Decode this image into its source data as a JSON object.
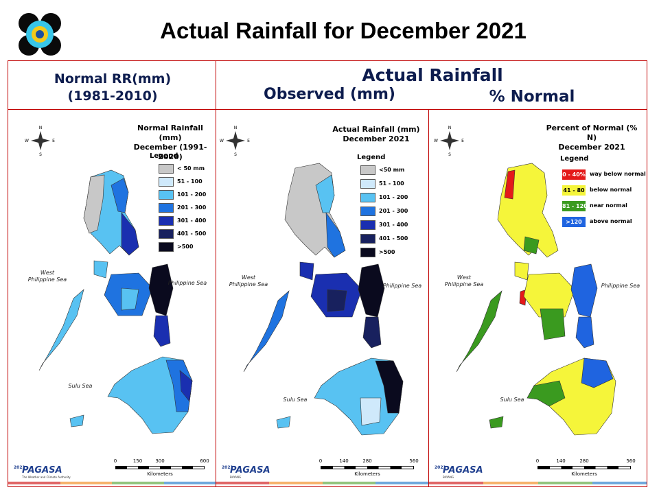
{
  "slide": {
    "title": "Actual Rainfall for December 2021"
  },
  "headers": {
    "normal_line1": "Normal RR(mm)",
    "normal_line2": "(1981-2010)",
    "actual": "Actual Rainfall",
    "observed": "Observed (mm)",
    "percent": "% Normal"
  },
  "panels": [
    {
      "id": "normal",
      "title_line1": "Normal Rainfall (mm)",
      "title_line2": "December (1991-2020)",
      "legend_title": "Legend",
      "legend": [
        {
          "label": "< 50 mm",
          "color": "#c8c8c8"
        },
        {
          "label": "51 - 100",
          "color": "#cfe9fb"
        },
        {
          "label": "101 - 200",
          "color": "#58c2f2"
        },
        {
          "label": "201 - 300",
          "color": "#1f73e0"
        },
        {
          "label": "301 - 400",
          "color": "#1a2fb0"
        },
        {
          "label": "401 - 500",
          "color": "#18215e"
        },
        {
          "label": ">500",
          "color": "#0a0a1e"
        }
      ],
      "sea_west": "West\nPhilippine Sea",
      "sea_east": "Philippine Sea",
      "sea_sulu": "Sulu Sea",
      "scale": [
        "0",
        "150",
        "300",
        "600"
      ],
      "scale_unit": "Kilometers",
      "logo_text": "PAGASA",
      "logo_year": "2021",
      "logo_sub": "The Weather and Climate Authority"
    },
    {
      "id": "observed",
      "title_line1": "Actual Rainfall (mm)",
      "title_line2": "December 2021",
      "legend_title": "Legend",
      "legend": [
        {
          "label": "<50 mm",
          "color": "#c8c8c8"
        },
        {
          "label": "51 - 100",
          "color": "#cfe9fb"
        },
        {
          "label": "101 - 200",
          "color": "#58c2f2"
        },
        {
          "label": "201 - 300",
          "color": "#1f73e0"
        },
        {
          "label": "301 - 400",
          "color": "#1a2fb0"
        },
        {
          "label": "401 - 500",
          "color": "#18215e"
        },
        {
          "label": ">500",
          "color": "#0a0a1e"
        }
      ],
      "sea_west": "West\nPhilippine Sea",
      "sea_east": "Philippine Sea",
      "sea_sulu": "Sulu Sea",
      "scale": [
        "0",
        "140",
        "280",
        "560"
      ],
      "scale_unit": "Kilometers",
      "logo_text": "PAGASA",
      "logo_year": "2021",
      "logo_sub": "BAYANG"
    },
    {
      "id": "percent",
      "title_line1": "Percent of Normal (% N)",
      "title_line2": "December 2021",
      "legend_title": "Legend",
      "legend": [
        {
          "code": "0 - 40%",
          "label": "way below normal",
          "color": "#e41a1a"
        },
        {
          "code": "41 - 80",
          "label": "below normal",
          "color": "#f5f53a"
        },
        {
          "code": "81 - 120",
          "label": "near normal",
          "color": "#3a9a1f"
        },
        {
          "code": ">120",
          "label": "above normal",
          "color": "#1f64e0"
        }
      ],
      "sea_west": "West\nPhilippine Sea",
      "sea_east": "Philippine Sea",
      "sea_sulu": "Sulu Sea",
      "scale": [
        "0",
        "140",
        "280",
        "560"
      ],
      "scale_unit": "Kilometers",
      "logo_text": "PAGASA",
      "logo_year": "2021",
      "logo_sub": "BAYANG"
    }
  ],
  "strip_colors": [
    "#e06666",
    "#f6b26b",
    "#93c47d",
    "#6fa8dc"
  ]
}
